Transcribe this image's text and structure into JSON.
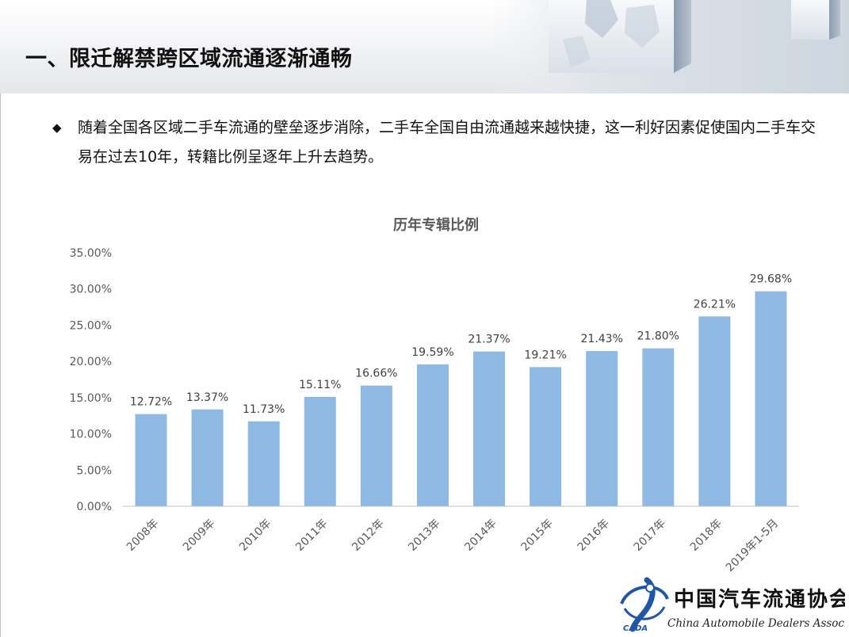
{
  "slide": {
    "title": "一、限迁解禁跨区域流通逐渐通畅",
    "bullet_icon": "diamond-bullet-icon",
    "bullet_text": "随着全国各区域二手车流通的壁垒逐步消除，二手车全国自由流通越来越快捷，这一利好因素促使国内二手车交易在过去10年，转籍比例呈逐年上升去趋势。"
  },
  "footer": {
    "org_name_cn": "中国汽车流通协会",
    "org_name_en": "China Automobile Dealers Association",
    "logo_abbr": "CADA"
  },
  "chart_data": {
    "type": "bar",
    "title": "历年专辑比例",
    "categories": [
      "2008年",
      "2009年",
      "2010年",
      "2011年",
      "2012年",
      "2013年",
      "2014年",
      "2015年",
      "2016年",
      "2017年",
      "2018年",
      "2019年1-5月"
    ],
    "values": [
      12.72,
      13.37,
      11.73,
      15.11,
      16.66,
      19.59,
      21.37,
      19.21,
      21.43,
      21.8,
      26.21,
      29.68
    ],
    "data_labels": [
      "12.72%",
      "13.37%",
      "11.73%",
      "15.11%",
      "16.66%",
      "19.59%",
      "21.37%",
      "19.21%",
      "21.43%",
      "21.80%",
      "26.21%",
      "29.68%"
    ],
    "y_ticks": [
      "0.00%",
      "5.00%",
      "10.00%",
      "15.00%",
      "20.00%",
      "25.00%",
      "30.00%",
      "35.00%"
    ],
    "ylim": [
      0,
      35
    ],
    "xlabel": "",
    "ylabel": "",
    "grid": false,
    "legend": "none",
    "bar_color": "#8db9e2"
  }
}
